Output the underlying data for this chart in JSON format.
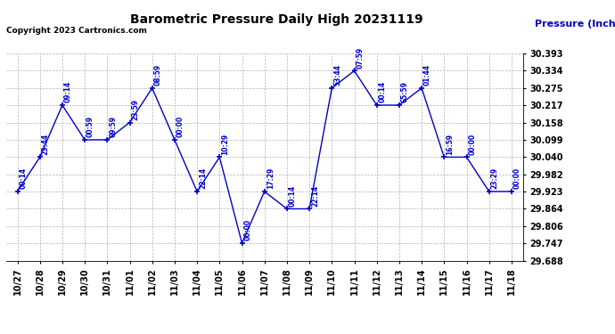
{
  "title": "Barometric Pressure Daily High 20231119",
  "ylabel": "Pressure (Inches/Hg)",
  "copyright": "Copyright 2023 Cartronics.com",
  "line_color": "#0000cc",
  "background_color": "#ffffff",
  "grid_color": "#aaaaaa",
  "ylim_min": 29.688,
  "ylim_max": 30.393,
  "yticks": [
    29.688,
    29.747,
    29.806,
    29.864,
    29.923,
    29.982,
    30.04,
    30.099,
    30.158,
    30.217,
    30.275,
    30.334,
    30.393
  ],
  "dates": [
    "10/27",
    "10/28",
    "10/29",
    "10/30",
    "10/31",
    "11/01",
    "11/02",
    "11/03",
    "11/04",
    "11/05",
    "11/06",
    "11/07",
    "11/08",
    "11/09",
    "11/10",
    "11/11",
    "11/12",
    "11/13",
    "11/14",
    "11/15",
    "11/16",
    "11/17",
    "11/18"
  ],
  "values": [
    29.923,
    30.04,
    30.217,
    30.099,
    30.099,
    30.158,
    30.275,
    30.099,
    29.923,
    30.04,
    29.747,
    29.923,
    29.864,
    29.864,
    30.275,
    30.334,
    30.217,
    30.217,
    30.275,
    30.04,
    30.04,
    29.923,
    29.923
  ],
  "annotations": [
    "00:14",
    "23:44",
    "09:14",
    "00:59",
    "09:59",
    "23:59",
    "08:59",
    "00:00",
    "22:14",
    "10:29",
    "00:00",
    "17:29",
    "00:14",
    "22:14",
    "53:44",
    "07:59",
    "00:14",
    "65:59",
    "01:44",
    "16:59",
    "00:00",
    "23:29",
    "00:00"
  ]
}
